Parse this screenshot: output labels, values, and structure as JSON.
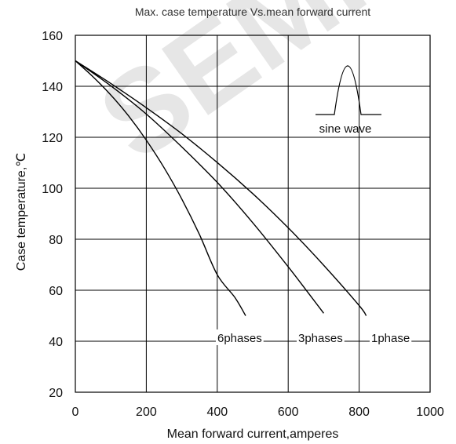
{
  "watermark": "SEMI",
  "chart_data": {
    "type": "line",
    "title": "Max. case temperature  Vs.mean forward current",
    "xlabel": "Mean forward  current,amperes",
    "ylabel": "Case temperature,℃",
    "xlim": [
      0,
      1000
    ],
    "ylim": [
      20,
      160
    ],
    "xticks": [
      0,
      200,
      400,
      600,
      800,
      1000
    ],
    "yticks": [
      20,
      40,
      60,
      80,
      100,
      120,
      140,
      160
    ],
    "xtick_labels": [
      "0",
      "200",
      "400",
      "600",
      "800",
      "1000"
    ],
    "ytick_labels": [
      "20",
      "40",
      "60",
      "80",
      "100",
      "120",
      "140",
      "160"
    ],
    "grid": true,
    "inset_label": "sine wave",
    "series": [
      {
        "name": "6phases",
        "x": [
          0,
          50,
          100,
          150,
          200,
          250,
          300,
          350,
          400,
          450,
          480
        ],
        "y": [
          150,
          143.7,
          136.6,
          128.4,
          118.9,
          108.1,
          95.8,
          81.8,
          66.1,
          57.1,
          50
        ]
      },
      {
        "name": "3phases",
        "x": [
          0,
          100,
          200,
          300,
          400,
          500,
          600,
          700
        ],
        "y": [
          150,
          140.2,
          129.1,
          116.2,
          102.3,
          86.5,
          69.2,
          51
        ]
      },
      {
        "name": "1phase",
        "x": [
          0,
          100,
          200,
          300,
          400,
          500,
          600,
          700,
          800,
          820
        ],
        "y": [
          150,
          141.1,
          131.6,
          121.4,
          110.1,
          97.9,
          84.5,
          69.8,
          54,
          50
        ]
      }
    ]
  }
}
